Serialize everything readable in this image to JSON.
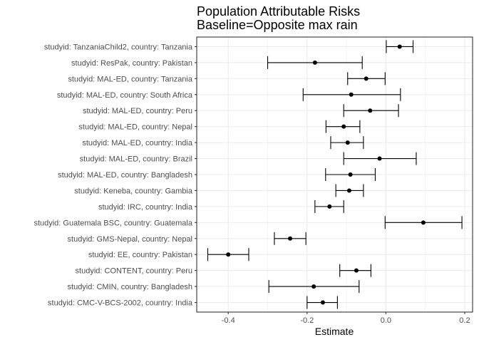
{
  "chart_data": {
    "type": "forest",
    "title_lines": [
      "Population Attributable Risks",
      "Baseline=Opposite max rain"
    ],
    "xlabel": "Estimate",
    "ylabel": "",
    "xlim": [
      -0.48,
      0.22
    ],
    "xticks": [
      -0.4,
      -0.2,
      0.0,
      0.2
    ],
    "xtick_labels": [
      "-0.4",
      "-0.2",
      "0.0",
      "0.2"
    ],
    "grid": true,
    "rows": [
      {
        "label": "studyid: TanzaniaChild2, country: Tanzania",
        "estimate": 0.035,
        "lower": 0.001,
        "upper": 0.069
      },
      {
        "label": "studyid: ResPak, country: Pakistan",
        "estimate": -0.18,
        "lower": -0.3,
        "upper": -0.06
      },
      {
        "label": "studyid: MAL-ED, country: Tanzania",
        "estimate": -0.05,
        "lower": -0.097,
        "upper": -0.002
      },
      {
        "label": "studyid: MAL-ED, country: South Africa",
        "estimate": -0.088,
        "lower": -0.21,
        "upper": 0.037
      },
      {
        "label": "studyid: MAL-ED, country: Peru",
        "estimate": -0.04,
        "lower": -0.107,
        "upper": 0.032
      },
      {
        "label": "studyid: MAL-ED, country: Nepal",
        "estimate": -0.107,
        "lower": -0.152,
        "upper": -0.066
      },
      {
        "label": "studyid: MAL-ED, country: India",
        "estimate": -0.097,
        "lower": -0.14,
        "upper": -0.057
      },
      {
        "label": "studyid: MAL-ED, country: Brazil",
        "estimate": -0.016,
        "lower": -0.107,
        "upper": 0.077
      },
      {
        "label": "studyid: MAL-ED, country: Bangladesh",
        "estimate": -0.09,
        "lower": -0.153,
        "upper": -0.027
      },
      {
        "label": "studyid: Keneba, country: Gambia",
        "estimate": -0.093,
        "lower": -0.127,
        "upper": -0.057
      },
      {
        "label": "studyid: IRC, country: India",
        "estimate": -0.143,
        "lower": -0.18,
        "upper": -0.107
      },
      {
        "label": "studyid: Guatemala BSC, country: Guatemala",
        "estimate": 0.095,
        "lower": -0.002,
        "upper": 0.193
      },
      {
        "label": "studyid: GMS-Nepal, country: Nepal",
        "estimate": -0.243,
        "lower": -0.283,
        "upper": -0.203
      },
      {
        "label": "studyid: EE, country: Pakistan",
        "estimate": -0.4,
        "lower": -0.452,
        "upper": -0.348
      },
      {
        "label": "studyid: CONTENT, country: Peru",
        "estimate": -0.075,
        "lower": -0.117,
        "upper": -0.038
      },
      {
        "label": "studyid: CMIN, country: Bangladesh",
        "estimate": -0.183,
        "lower": -0.297,
        "upper": -0.068
      },
      {
        "label": "studyid: CMC-V-BCS-2002, country: India",
        "estimate": -0.16,
        "lower": -0.2,
        "upper": -0.123
      }
    ]
  }
}
